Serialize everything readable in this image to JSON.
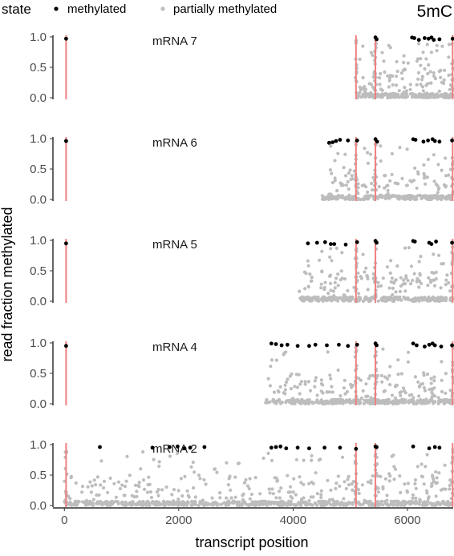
{
  "chart_data": {
    "type": "scatter",
    "corner_label": "5mC",
    "legend": {
      "title": "state",
      "placement": "top-left",
      "entries": [
        {
          "label": "methylated",
          "color": "#000000"
        },
        {
          "label": "partially methylated",
          "color": "#bdbdbd"
        }
      ]
    },
    "xlabel": "transcript position",
    "ylabel": "read fraction methylated",
    "xlim": [
      -200,
      6800
    ],
    "xticks": [
      0,
      2000,
      4000,
      6000
    ],
    "xtick_labels": [
      "0",
      "2000",
      "4000",
      "6000"
    ],
    "ylim": [
      0,
      1
    ],
    "yticks": [
      0,
      0.5,
      1
    ],
    "ytick_labels": [
      "0.0",
      "0.5",
      "1.0"
    ],
    "grid": false,
    "boundary_color": "#f08080",
    "methylated_color": "#000000",
    "partial_color": "#bdbdbd",
    "panels": [
      {
        "label": "mRNA 7",
        "transcript_start": 5100,
        "boundaries": [
          30,
          5100,
          5440,
          6790
        ],
        "methylated": [
          {
            "x": 30,
            "y": 0.97
          },
          {
            "x": 5440,
            "y": 0.99
          },
          {
            "x": 5460,
            "y": 0.96
          },
          {
            "x": 6080,
            "y": 0.99
          },
          {
            "x": 6120,
            "y": 0.98
          },
          {
            "x": 6200,
            "y": 0.95
          },
          {
            "x": 6300,
            "y": 0.98
          },
          {
            "x": 6370,
            "y": 0.97
          },
          {
            "x": 6420,
            "y": 0.99
          },
          {
            "x": 6460,
            "y": 0.95
          },
          {
            "x": 6560,
            "y": 0.96
          },
          {
            "x": 6790,
            "y": 0.97
          }
        ],
        "partial_count": 300
      },
      {
        "label": "mRNA 6",
        "transcript_start": 4510,
        "boundaries": [
          30,
          5100,
          5440,
          6790
        ],
        "methylated": [
          {
            "x": 30,
            "y": 0.96
          },
          {
            "x": 4630,
            "y": 0.93
          },
          {
            "x": 4690,
            "y": 0.94
          },
          {
            "x": 4750,
            "y": 0.96
          },
          {
            "x": 4820,
            "y": 0.98
          },
          {
            "x": 4960,
            "y": 0.97
          },
          {
            "x": 5120,
            "y": 0.97
          },
          {
            "x": 5440,
            "y": 0.99
          },
          {
            "x": 5470,
            "y": 0.95
          },
          {
            "x": 6100,
            "y": 0.99
          },
          {
            "x": 6140,
            "y": 0.98
          },
          {
            "x": 6280,
            "y": 0.95
          },
          {
            "x": 6360,
            "y": 0.97
          },
          {
            "x": 6440,
            "y": 0.99
          },
          {
            "x": 6480,
            "y": 0.96
          },
          {
            "x": 6560,
            "y": 0.95
          },
          {
            "x": 6780,
            "y": 0.97
          }
        ],
        "partial_count": 320
      },
      {
        "label": "mRNA 5",
        "transcript_start": 4100,
        "boundaries": [
          30,
          5100,
          5440,
          6790
        ],
        "methylated": [
          {
            "x": 30,
            "y": 0.95
          },
          {
            "x": 4260,
            "y": 0.95
          },
          {
            "x": 4420,
            "y": 0.96
          },
          {
            "x": 4560,
            "y": 0.97
          },
          {
            "x": 4660,
            "y": 0.94
          },
          {
            "x": 4720,
            "y": 0.94
          },
          {
            "x": 4920,
            "y": 0.93
          },
          {
            "x": 5120,
            "y": 0.97
          },
          {
            "x": 5440,
            "y": 0.99
          },
          {
            "x": 5460,
            "y": 0.96
          },
          {
            "x": 6100,
            "y": 0.99
          },
          {
            "x": 6130,
            "y": 0.98
          },
          {
            "x": 6380,
            "y": 0.96
          },
          {
            "x": 6420,
            "y": 0.94
          },
          {
            "x": 6500,
            "y": 0.98
          },
          {
            "x": 6780,
            "y": 0.96
          }
        ],
        "partial_count": 380
      },
      {
        "label": "mRNA 4",
        "transcript_start": 3520,
        "boundaries": [
          30,
          5100,
          5440,
          6790
        ],
        "methylated": [
          {
            "x": 30,
            "y": 0.95
          },
          {
            "x": 3620,
            "y": 0.99
          },
          {
            "x": 3700,
            "y": 0.98
          },
          {
            "x": 3800,
            "y": 0.96
          },
          {
            "x": 3900,
            "y": 0.97
          },
          {
            "x": 4080,
            "y": 0.95
          },
          {
            "x": 4280,
            "y": 0.95
          },
          {
            "x": 4390,
            "y": 0.97
          },
          {
            "x": 4590,
            "y": 0.96
          },
          {
            "x": 4800,
            "y": 0.97
          },
          {
            "x": 4960,
            "y": 0.95
          },
          {
            "x": 5120,
            "y": 0.97
          },
          {
            "x": 5440,
            "y": 0.99
          },
          {
            "x": 5460,
            "y": 0.96
          },
          {
            "x": 6100,
            "y": 0.99
          },
          {
            "x": 6160,
            "y": 0.96
          },
          {
            "x": 6300,
            "y": 0.94
          },
          {
            "x": 6380,
            "y": 0.97
          },
          {
            "x": 6440,
            "y": 0.99
          },
          {
            "x": 6480,
            "y": 0.96
          },
          {
            "x": 6590,
            "y": 0.94
          },
          {
            "x": 6780,
            "y": 0.96
          }
        ],
        "partial_count": 450
      },
      {
        "label": "mRNA 2",
        "transcript_start": 0,
        "boundaries": [
          30,
          5100,
          5440,
          6790
        ],
        "methylated": [
          {
            "x": 620,
            "y": 0.96
          },
          {
            "x": 1540,
            "y": 0.95
          },
          {
            "x": 1840,
            "y": 0.96
          },
          {
            "x": 1980,
            "y": 0.97
          },
          {
            "x": 2100,
            "y": 0.94
          },
          {
            "x": 2200,
            "y": 0.95
          },
          {
            "x": 2450,
            "y": 0.96
          },
          {
            "x": 3620,
            "y": 0.95
          },
          {
            "x": 3700,
            "y": 0.96
          },
          {
            "x": 3780,
            "y": 0.97
          },
          {
            "x": 3880,
            "y": 0.94
          },
          {
            "x": 4080,
            "y": 0.95
          },
          {
            "x": 4280,
            "y": 0.94
          },
          {
            "x": 4550,
            "y": 0.95
          },
          {
            "x": 4820,
            "y": 0.95
          },
          {
            "x": 5100,
            "y": 0.93
          },
          {
            "x": 5440,
            "y": 0.97
          },
          {
            "x": 5460,
            "y": 0.96
          },
          {
            "x": 6100,
            "y": 0.97
          },
          {
            "x": 6380,
            "y": 0.94
          },
          {
            "x": 6480,
            "y": 0.96
          },
          {
            "x": 6560,
            "y": 0.95
          }
        ],
        "partial_count": 800
      }
    ]
  }
}
